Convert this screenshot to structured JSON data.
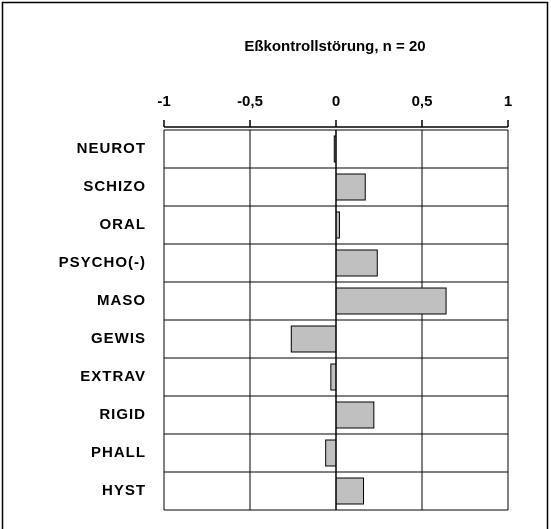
{
  "chart_data": {
    "type": "barh",
    "title": "Eßkontrollstörung, n = 20",
    "categories": [
      "NEUROT",
      "SCHIZO",
      "ORAL",
      "PSYCHO(-)",
      "MASO",
      "GEWIS",
      "EXTRAV",
      "RIGID",
      "PHALL",
      "HYST"
    ],
    "values": [
      -0.01,
      0.17,
      0.02,
      0.24,
      0.64,
      -0.26,
      -0.03,
      0.22,
      -0.06,
      0.16
    ],
    "color": "#c0c0c0",
    "xlim": [
      -1,
      1
    ],
    "xticks": [
      -1,
      {
        "value": -0.5,
        "label": "-0,5"
      },
      0,
      {
        "value": 0.5,
        "label": "0,5"
      },
      1
    ],
    "grid": true
  }
}
